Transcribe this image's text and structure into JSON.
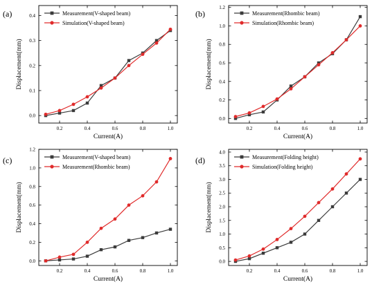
{
  "figure": {
    "colors": {
      "series_0": "#3b3b3b",
      "series_1": "#e02b2b",
      "axis": "#000000"
    }
  },
  "chart_data": [
    {
      "panel_label": "(a)",
      "type": "line",
      "xlabel": "Current(A)",
      "ylabel": "Displacement(mm)",
      "xlim": [
        0.05,
        1.05
      ],
      "ylim": [
        -0.03,
        0.44
      ],
      "xticks": [
        "0.2",
        "0.4",
        "0.6",
        "0.8",
        "1.0"
      ],
      "yticks": [
        "0.0",
        "0.1",
        "0.2",
        "0.3",
        "0.4"
      ],
      "legend_position": "top-left",
      "series": [
        {
          "name": "Measurement(V-shaped beam)",
          "marker": "square",
          "color": "#3b3b3b",
          "x": [
            0.1,
            0.2,
            0.3,
            0.4,
            0.5,
            0.6,
            0.7,
            0.8,
            0.9,
            1.0
          ],
          "y": [
            0.0,
            0.01,
            0.02,
            0.05,
            0.12,
            0.15,
            0.22,
            0.25,
            0.3,
            0.34
          ]
        },
        {
          "name": "Simulation(V-shaped beam)",
          "marker": "circle",
          "color": "#e02b2b",
          "x": [
            0.1,
            0.2,
            0.3,
            0.4,
            0.5,
            0.6,
            0.7,
            0.8,
            0.9,
            1.0
          ],
          "y": [
            0.005,
            0.02,
            0.045,
            0.075,
            0.11,
            0.15,
            0.2,
            0.245,
            0.29,
            0.345
          ]
        }
      ]
    },
    {
      "panel_label": "(b)",
      "type": "line",
      "xlabel": "Current(A)",
      "ylabel": "Displacement(mm)",
      "xlim": [
        0.05,
        1.05
      ],
      "ylim": [
        -0.05,
        1.22
      ],
      "xticks": [
        "0.2",
        "0.4",
        "0.6",
        "0.8",
        "1.0"
      ],
      "yticks": [
        "0.0",
        "0.2",
        "0.4",
        "0.6",
        "0.8",
        "1.0",
        "1.2"
      ],
      "legend_position": "top-left",
      "series": [
        {
          "name": "Measurement(Rhombic beam)",
          "marker": "square",
          "color": "#3b3b3b",
          "x": [
            0.1,
            0.2,
            0.3,
            0.4,
            0.5,
            0.6,
            0.7,
            0.8,
            0.9,
            1.0
          ],
          "y": [
            0.0,
            0.04,
            0.07,
            0.2,
            0.35,
            0.45,
            0.6,
            0.7,
            0.85,
            1.1
          ]
        },
        {
          "name": "Simulation(Rhombic beam)",
          "marker": "circle",
          "color": "#e02b2b",
          "x": [
            0.1,
            0.2,
            0.3,
            0.4,
            0.5,
            0.6,
            0.7,
            0.8,
            0.9,
            1.0
          ],
          "y": [
            0.02,
            0.06,
            0.13,
            0.21,
            0.32,
            0.45,
            0.58,
            0.71,
            0.85,
            1.0
          ]
        }
      ]
    },
    {
      "panel_label": "(c)",
      "type": "line",
      "xlabel": "Current(A)",
      "ylabel": "Displacement(mm)",
      "xlim": [
        0.05,
        1.05
      ],
      "ylim": [
        -0.05,
        1.2
      ],
      "xticks": [
        "0.2",
        "0.4",
        "0.6",
        "0.8",
        "1.0"
      ],
      "yticks": [
        "0.0",
        "0.2",
        "0.4",
        "0.6",
        "0.8",
        "1.0",
        "1.2"
      ],
      "legend_position": "top-left",
      "series": [
        {
          "name": "Measurement(V-shaped beam)",
          "marker": "square",
          "color": "#3b3b3b",
          "x": [
            0.1,
            0.2,
            0.3,
            0.4,
            0.5,
            0.6,
            0.7,
            0.8,
            0.9,
            1.0
          ],
          "y": [
            0.0,
            0.01,
            0.02,
            0.05,
            0.12,
            0.15,
            0.22,
            0.25,
            0.3,
            0.34
          ]
        },
        {
          "name": "Measurement(Rhombic beam)",
          "marker": "circle",
          "color": "#e02b2b",
          "x": [
            0.1,
            0.2,
            0.3,
            0.4,
            0.5,
            0.6,
            0.7,
            0.8,
            0.9,
            1.0
          ],
          "y": [
            0.0,
            0.04,
            0.07,
            0.2,
            0.35,
            0.45,
            0.6,
            0.7,
            0.85,
            1.1
          ]
        }
      ]
    },
    {
      "panel_label": "(d)",
      "type": "line",
      "xlabel": "Current(A)",
      "ylabel": "Displacement(mm)",
      "xlim": [
        0.05,
        1.05
      ],
      "ylim": [
        -0.15,
        4.1
      ],
      "xticks": [
        "0.2",
        "0.4",
        "0.6",
        "0.8",
        "1.0"
      ],
      "yticks": [
        "0.0",
        "0.5",
        "1.0",
        "1.5",
        "2.0",
        "2.5",
        "3.0",
        "3.5",
        "4.0"
      ],
      "legend_position": "top-left",
      "series": [
        {
          "name": "Measurement(Folding height)",
          "marker": "square",
          "color": "#3b3b3b",
          "x": [
            0.1,
            0.2,
            0.3,
            0.4,
            0.5,
            0.6,
            0.7,
            0.8,
            0.9,
            1.0
          ],
          "y": [
            0.0,
            0.1,
            0.3,
            0.5,
            0.7,
            1.0,
            1.5,
            2.0,
            2.5,
            3.0
          ]
        },
        {
          "name": "Simulation(Folding height)",
          "marker": "circle",
          "color": "#e02b2b",
          "x": [
            0.1,
            0.2,
            0.3,
            0.4,
            0.5,
            0.6,
            0.7,
            0.8,
            0.9,
            1.0
          ],
          "y": [
            0.05,
            0.2,
            0.45,
            0.8,
            1.2,
            1.65,
            2.15,
            2.65,
            3.2,
            3.75
          ]
        }
      ]
    }
  ]
}
